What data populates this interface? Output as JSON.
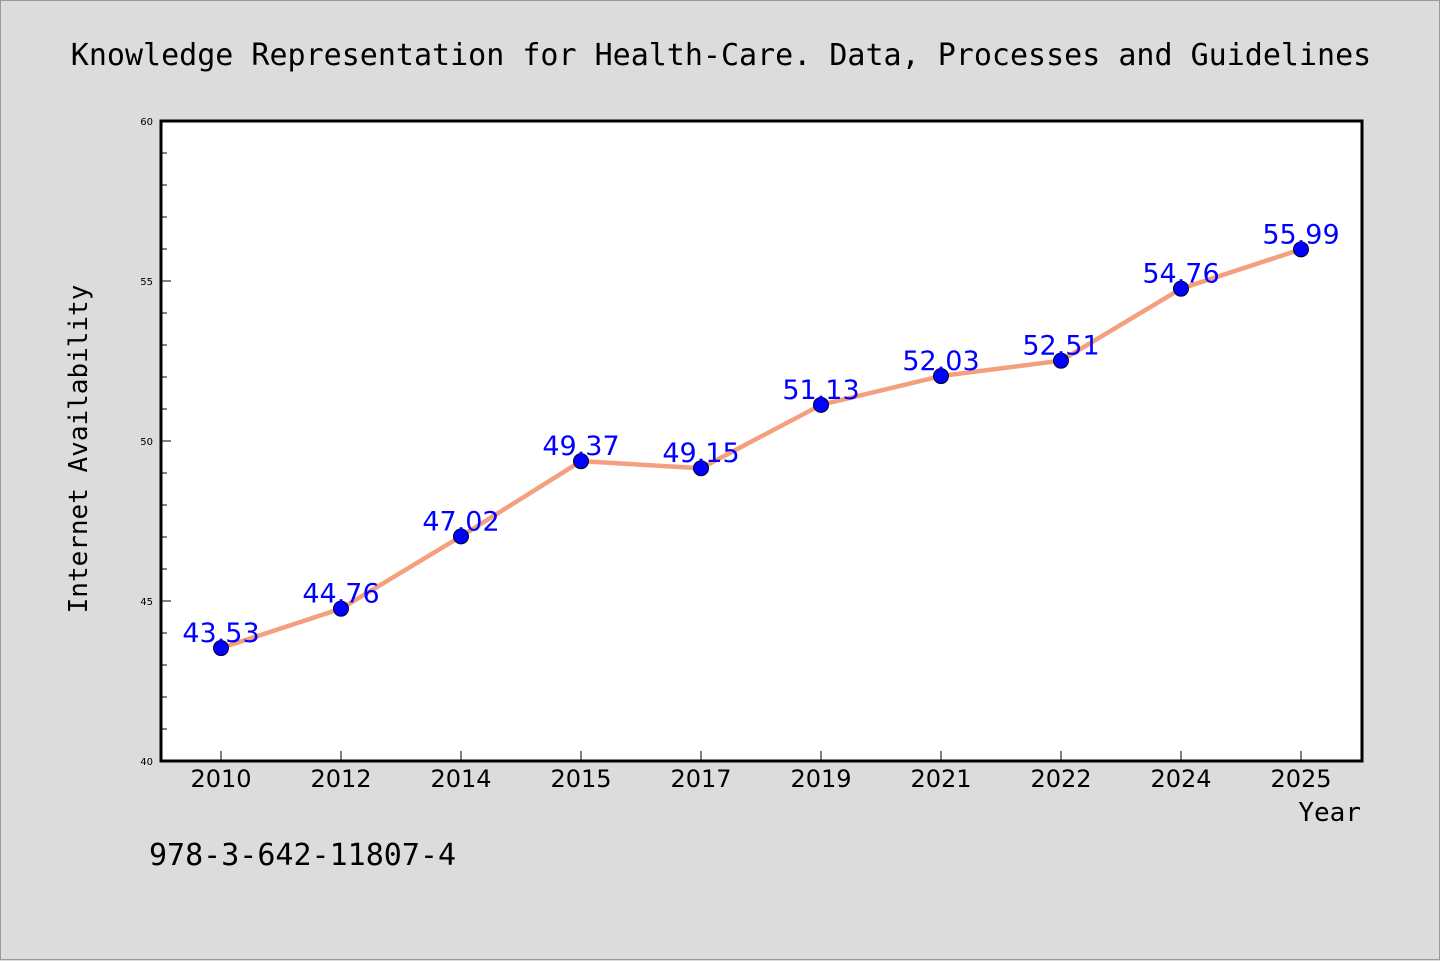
{
  "chart_data": {
    "type": "line",
    "title": "Knowledge Representation for Health-Care. Data, Processes and Guidelines",
    "xlabel": "Year",
    "ylabel": "Internet Availability",
    "categories": [
      "2010",
      "2012",
      "2014",
      "2015",
      "2017",
      "2019",
      "2021",
      "2022",
      "2024",
      "2025"
    ],
    "series": [
      {
        "values": [
          43.53,
          44.76,
          47.02,
          49.37,
          49.15,
          51.13,
          52.03,
          52.51,
          54.76,
          55.99
        ],
        "labels": [
          "43.53",
          "44.76",
          "47.02",
          "49.37",
          "49.15",
          "51.13",
          "52.03",
          "52.51",
          "54.76",
          "55.99"
        ]
      }
    ],
    "ylim": [
      40,
      60
    ],
    "yticks": [
      "40",
      "45",
      "50",
      "55",
      "60"
    ],
    "grid": false,
    "line_color": "#f4a07e",
    "marker_color": "#0000ff",
    "label_color": "#0000ff",
    "footer": "978-3-642-11807-4"
  }
}
